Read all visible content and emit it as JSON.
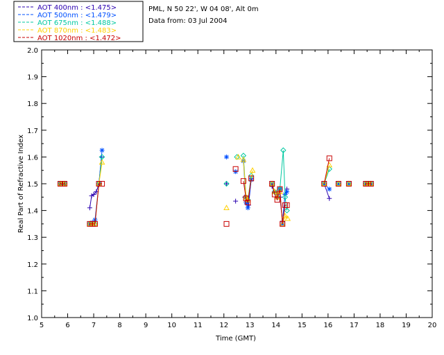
{
  "header": {
    "site": "PML, N 50 22', W 04 08', Alt 0m",
    "date": "Data from: 03 Jul 2004"
  },
  "chart_data": {
    "type": "line",
    "xlabel": "Time (GMT)",
    "ylabel": "Real Part of Refractive Index",
    "xlim": [
      5,
      20
    ],
    "ylim": [
      1.0,
      2.0
    ],
    "xticks": [
      "5",
      "6",
      "7",
      "8",
      "9",
      "10",
      "11",
      "12",
      "13",
      "14",
      "15",
      "16",
      "17",
      "18",
      "19",
      "20"
    ],
    "yticks": [
      "1.0",
      "1.1",
      "1.2",
      "1.3",
      "1.4",
      "1.5",
      "1.6",
      "1.7",
      "1.8",
      "1.9",
      "2.0"
    ],
    "grid": false,
    "legend_position": "top-left, outside plot",
    "series": [
      {
        "name": "AOT  400nm : <1.475>",
        "color": "#2a00b0",
        "marker": "plus",
        "segments": [
          {
            "x": [
              5.72,
              5.8,
              5.88
            ],
            "y": [
              1.5,
              1.5,
              1.5
            ]
          },
          {
            "x": [
              6.85,
              6.92,
              7.0,
              7.1,
              7.2,
              7.3
            ],
            "y": [
              1.41,
              1.455,
              1.46,
              1.47,
              1.5,
              1.6
            ]
          },
          {
            "x": [
              12.1
            ],
            "y": [
              1.5
            ]
          },
          {
            "x": [
              12.45
            ],
            "y": [
              1.435
            ]
          },
          {
            "x": [
              12.8,
              12.88,
              12.95,
              13.05
            ],
            "y": [
              1.45,
              1.43,
              1.42,
              1.52
            ]
          },
          {
            "x": [
              13.85,
              13.95,
              14.05,
              14.15,
              14.25,
              14.35,
              14.42
            ],
            "y": [
              1.49,
              1.47,
              1.46,
              1.45,
              1.36,
              1.46,
              1.48
            ]
          },
          {
            "x": [
              15.85,
              16.05
            ],
            "y": [
              1.5,
              1.445
            ]
          },
          {
            "x": [
              16.4
            ],
            "y": [
              1.5
            ]
          },
          {
            "x": [
              16.8
            ],
            "y": [
              1.5
            ]
          },
          {
            "x": [
              17.45,
              17.55,
              17.65
            ],
            "y": [
              1.5,
              1.5,
              1.5
            ]
          }
        ]
      },
      {
        "name": "AOT  500nm : <1.479>",
        "color": "#0050ff",
        "marker": "asterisk",
        "segments": [
          {
            "x": [
              5.72,
              5.8,
              5.88
            ],
            "y": [
              1.5,
              1.5,
              1.5
            ]
          },
          {
            "x": [
              6.85,
              6.95,
              7.05,
              7.2,
              7.32
            ],
            "y": [
              1.35,
              1.355,
              1.365,
              1.5,
              1.625
            ]
          },
          {
            "x": [
              12.1
            ],
            "y": [
              1.6
            ]
          },
          {
            "x": [
              12.45
            ],
            "y": [
              1.545
            ]
          },
          {
            "x": [
              12.75,
              12.85,
              12.92,
              13.05
            ],
            "y": [
              1.585,
              1.43,
              1.41,
              1.515
            ]
          },
          {
            "x": [
              13.85,
              13.95,
              14.05,
              14.15,
              14.25,
              14.35,
              14.42
            ],
            "y": [
              1.5,
              1.47,
              1.46,
              1.48,
              1.35,
              1.46,
              1.47
            ]
          },
          {
            "x": [
              15.85,
              16.05
            ],
            "y": [
              1.5,
              1.48
            ]
          },
          {
            "x": [
              16.4
            ],
            "y": [
              1.5
            ]
          },
          {
            "x": [
              16.8
            ],
            "y": [
              1.5
            ]
          },
          {
            "x": [
              17.45,
              17.55,
              17.65
            ],
            "y": [
              1.5,
              1.5,
              1.5
            ]
          }
        ]
      },
      {
        "name": "AOT  675nm : <1.488>",
        "color": "#00c8a0",
        "marker": "diamond",
        "segments": [
          {
            "x": [
              5.72,
              5.8,
              5.88
            ],
            "y": [
              1.5,
              1.5,
              1.5
            ]
          },
          {
            "x": [
              6.85,
              6.95,
              7.05,
              7.2,
              7.32
            ],
            "y": [
              1.35,
              1.35,
              1.35,
              1.5,
              1.6
            ]
          },
          {
            "x": [
              12.1
            ],
            "y": [
              1.5
            ]
          },
          {
            "x": [
              12.5
            ],
            "y": [
              1.6
            ]
          },
          {
            "x": [
              12.75,
              12.85,
              12.92,
              13.05
            ],
            "y": [
              1.605,
              1.45,
              1.44,
              1.53
            ]
          },
          {
            "x": [
              13.85,
              13.95,
              14.05,
              14.15,
              14.28,
              14.35,
              14.42
            ],
            "y": [
              1.5,
              1.47,
              1.45,
              1.48,
              1.625,
              1.45,
              1.4
            ]
          },
          {
            "x": [
              15.85,
              16.05
            ],
            "y": [
              1.5,
              1.555
            ]
          },
          {
            "x": [
              16.4
            ],
            "y": [
              1.5
            ]
          },
          {
            "x": [
              16.8
            ],
            "y": [
              1.5
            ]
          },
          {
            "x": [
              17.45,
              17.55,
              17.65
            ],
            "y": [
              1.5,
              1.5,
              1.5
            ]
          }
        ]
      },
      {
        "name": "AOT  870nm : <1.483>",
        "color": "#ffd000",
        "marker": "triangle",
        "segments": [
          {
            "x": [
              5.72,
              5.8,
              5.88
            ],
            "y": [
              1.5,
              1.5,
              1.5
            ]
          },
          {
            "x": [
              6.85,
              6.95,
              7.05,
              7.2,
              7.32
            ],
            "y": [
              1.35,
              1.35,
              1.35,
              1.5,
              1.58
            ]
          },
          {
            "x": [
              12.1
            ],
            "y": [
              1.41
            ]
          },
          {
            "x": [
              12.55
            ],
            "y": [
              1.6
            ]
          },
          {
            "x": [
              12.75,
              12.85,
              12.92,
              13.1
            ],
            "y": [
              1.59,
              1.45,
              1.44,
              1.55
            ]
          },
          {
            "x": [
              13.85,
              13.95,
              14.05,
              14.15,
              14.25,
              14.35,
              14.45
            ],
            "y": [
              1.5,
              1.47,
              1.45,
              1.47,
              1.35,
              1.38,
              1.37
            ]
          },
          {
            "x": [
              15.85,
              16.05
            ],
            "y": [
              1.5,
              1.57
            ]
          },
          {
            "x": [
              16.4
            ],
            "y": [
              1.5
            ]
          },
          {
            "x": [
              16.8
            ],
            "y": [
              1.5
            ]
          },
          {
            "x": [
              17.45,
              17.55,
              17.65
            ],
            "y": [
              1.5,
              1.5,
              1.5
            ]
          }
        ]
      },
      {
        "name": "AOT 1020nm : <1.472>",
        "color": "#c80000",
        "marker": "square",
        "segments": [
          {
            "x": [
              5.72,
              5.8,
              5.88
            ],
            "y": [
              1.5,
              1.5,
              1.5
            ]
          },
          {
            "x": [
              6.85,
              6.95,
              7.05,
              7.2,
              7.32
            ],
            "y": [
              1.35,
              1.35,
              1.35,
              1.5,
              1.5
            ]
          },
          {
            "x": [
              12.1
            ],
            "y": [
              1.35
            ]
          },
          {
            "x": [
              12.45
            ],
            "y": [
              1.555
            ]
          },
          {
            "x": [
              12.75,
              12.85,
              12.92,
              13.05
            ],
            "y": [
              1.51,
              1.445,
              1.43,
              1.52
            ]
          },
          {
            "x": [
              13.85,
              13.95,
              14.05,
              14.15,
              14.25,
              14.35,
              14.42
            ],
            "y": [
              1.5,
              1.46,
              1.44,
              1.48,
              1.35,
              1.42,
              1.42
            ]
          },
          {
            "x": [
              15.85,
              16.05
            ],
            "y": [
              1.5,
              1.595
            ]
          },
          {
            "x": [
              16.4
            ],
            "y": [
              1.5
            ]
          },
          {
            "x": [
              16.8
            ],
            "y": [
              1.5
            ]
          },
          {
            "x": [
              17.45,
              17.55,
              17.65
            ],
            "y": [
              1.5,
              1.5,
              1.5
            ]
          }
        ]
      }
    ]
  }
}
